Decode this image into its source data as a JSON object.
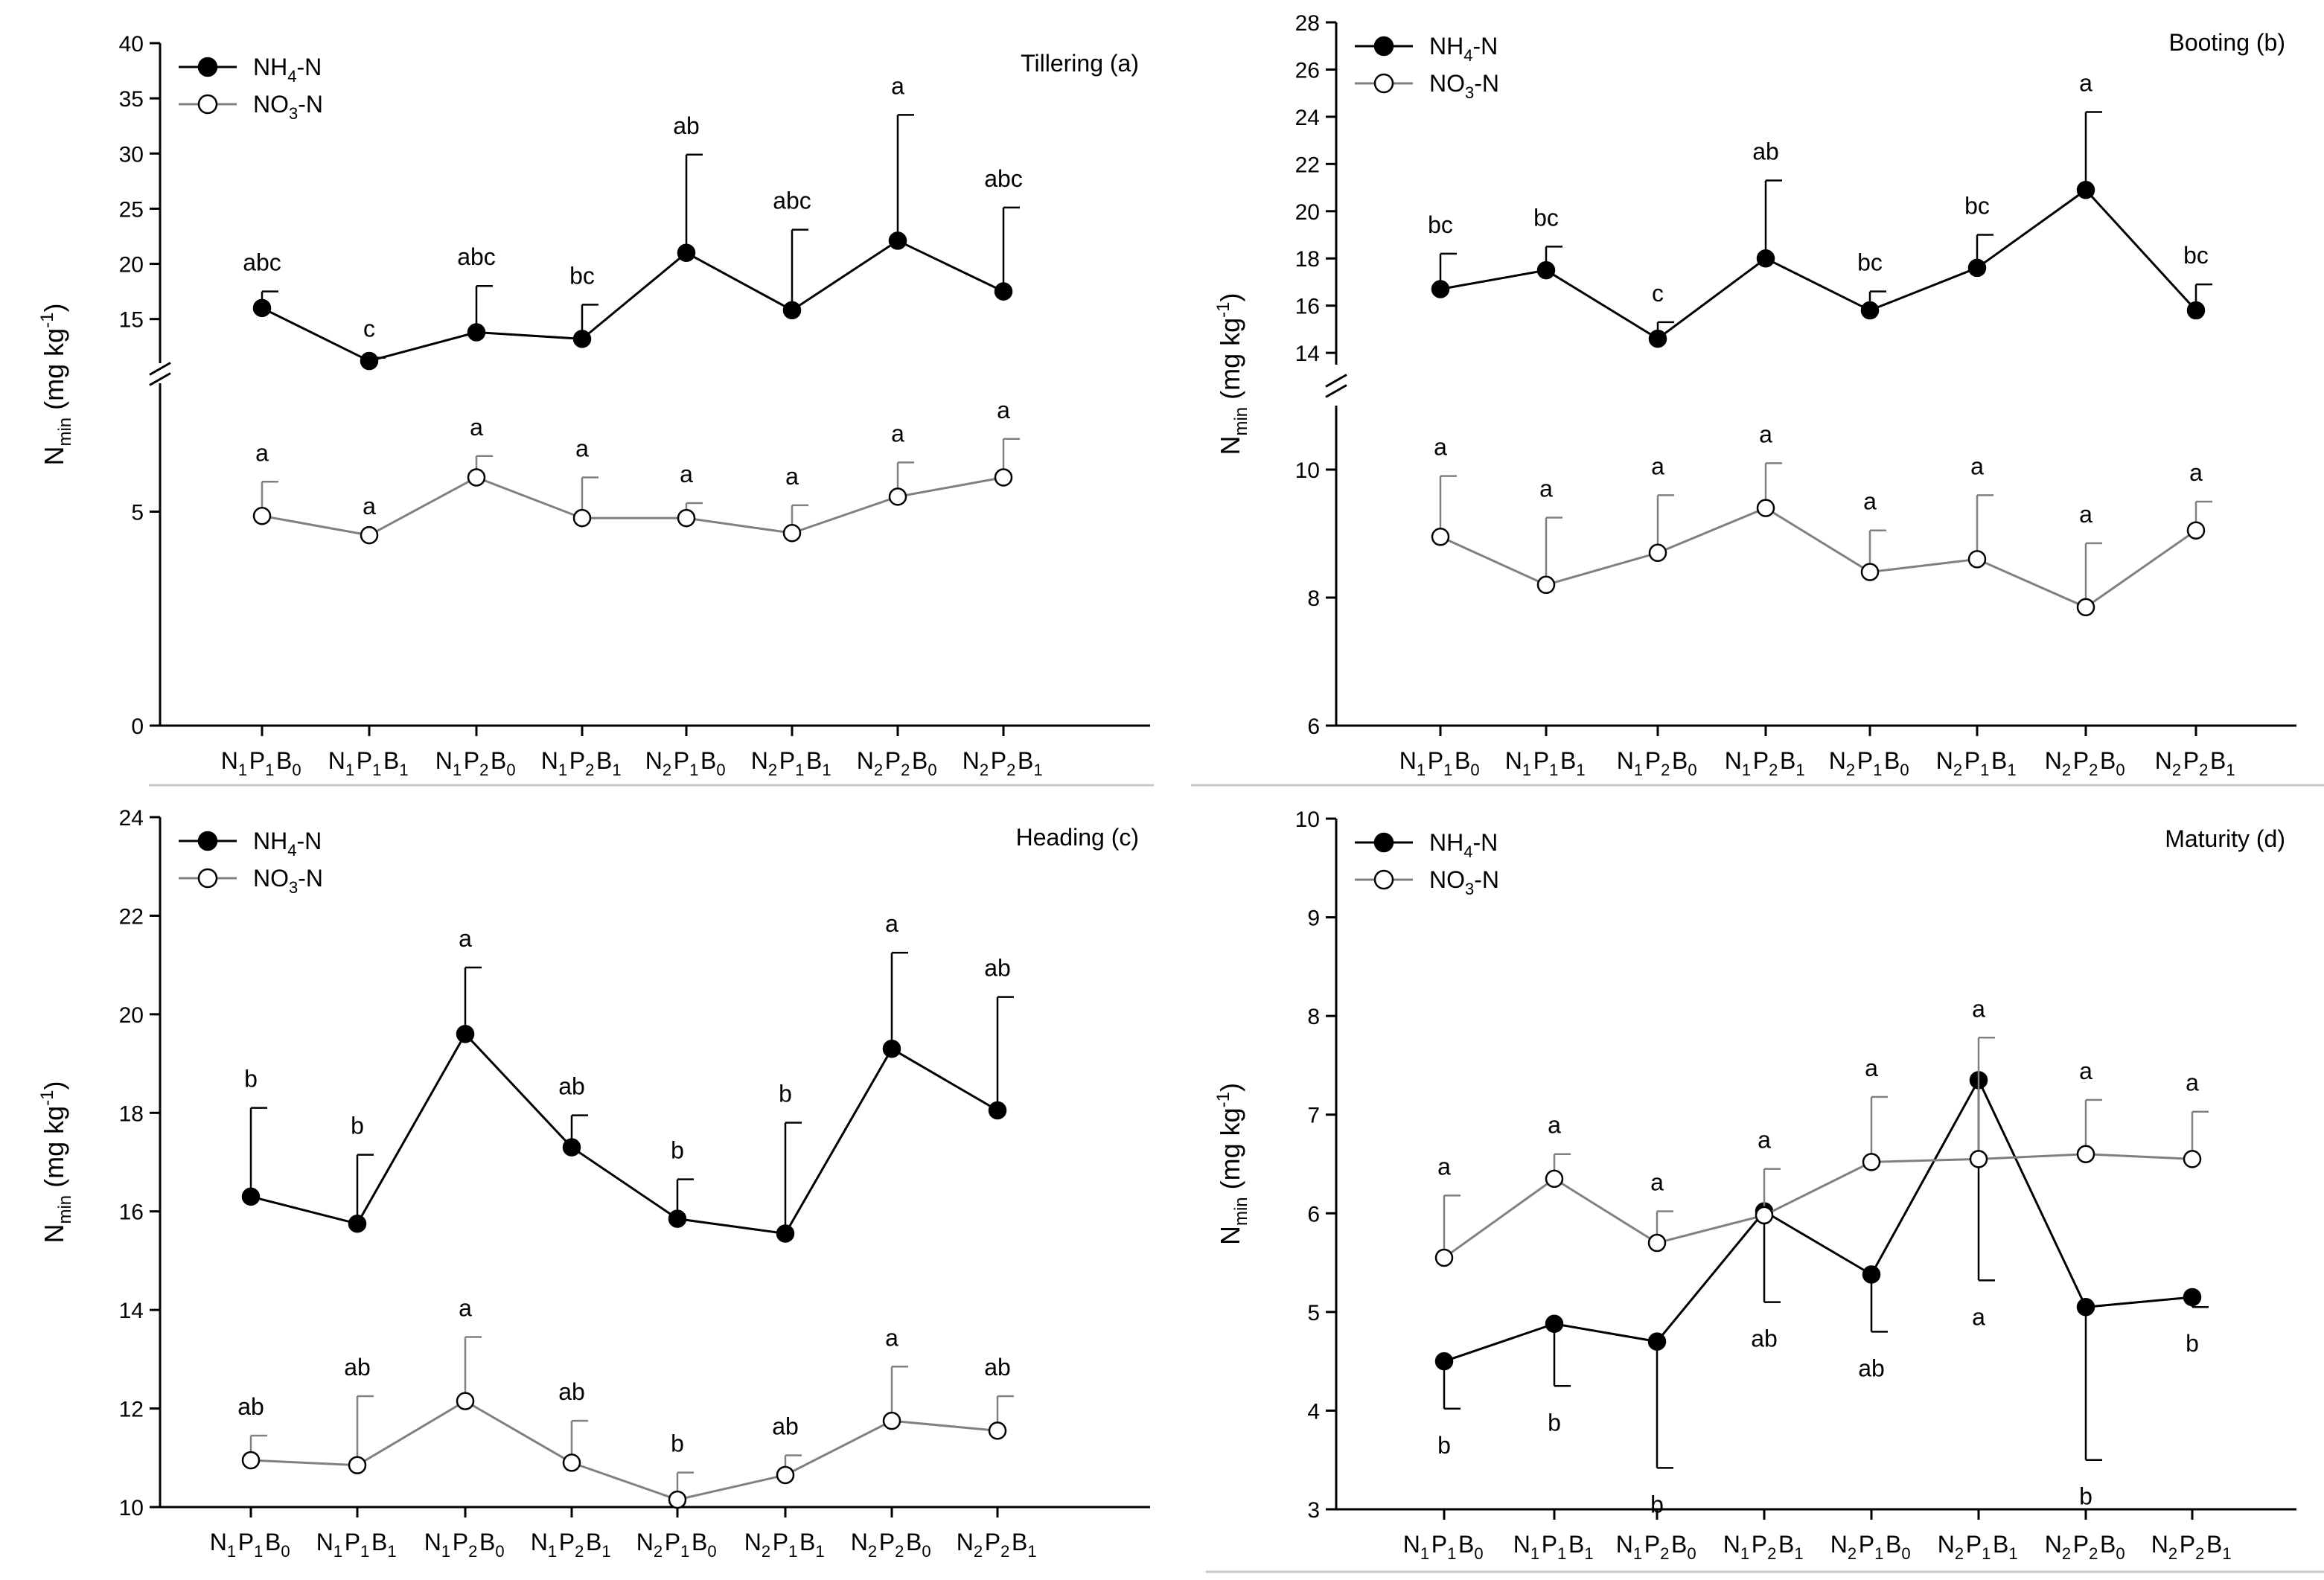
{
  "figure": {
    "categories": [
      [
        "N",
        "1",
        "P",
        "1",
        "B",
        "0"
      ],
      [
        "N",
        "1",
        "P",
        "1",
        "B",
        "1"
      ],
      [
        "N",
        "1",
        "P",
        "2",
        "B",
        "0"
      ],
      [
        "N",
        "1",
        "P",
        "2",
        "B",
        "1"
      ],
      [
        "N",
        "2",
        "P",
        "1",
        "B",
        "0"
      ],
      [
        "N",
        "2",
        "P",
        "1",
        "B",
        "1"
      ],
      [
        "N",
        "2",
        "P",
        "2",
        "B",
        "0"
      ],
      [
        "N",
        "2",
        "P",
        "2",
        "B",
        "1"
      ]
    ],
    "legend_nh4": {
      "main": "NH",
      "sub": "4",
      "suffix": "-N"
    },
    "legend_no3": {
      "main": "NO",
      "sub": "3",
      "suffix": "-N"
    },
    "ylabel": {
      "main": "N",
      "sub": "min",
      "unit_open": " (mg kg",
      "unit_exp": "-1",
      "unit_close": ")"
    },
    "colors": {
      "nh4_line": "#000000",
      "no3_line": "#808080",
      "marker_fill_nh4": "#000000",
      "marker_fill_no3": "#ffffff"
    }
  },
  "chart_data": [
    {
      "type": "line",
      "title": "Tillering (a)",
      "xlabel": "",
      "ylabel": "Nmin (mg kg-1)",
      "axis_break": true,
      "lower_ylim": [
        0,
        8
      ],
      "lower_ticks": [
        0,
        5
      ],
      "upper_ylim": [
        11,
        40
      ],
      "upper_ticks": [
        15,
        20,
        25,
        30,
        35,
        40
      ],
      "series": [
        {
          "name": "NH4-N",
          "values": [
            16.0,
            11.2,
            13.8,
            13.2,
            21.0,
            15.8,
            22.1,
            17.5
          ],
          "err_hi": [
            17.5,
            11.5,
            18.0,
            16.3,
            29.9,
            23.1,
            33.5,
            25.1
          ],
          "letters": [
            "abc",
            "c",
            "abc",
            "bc",
            "ab",
            "abc",
            "a",
            "abc"
          ],
          "letter_pos": [
            "above",
            "above",
            "above",
            "above",
            "above",
            "above",
            "above",
            "above"
          ]
        },
        {
          "name": "NO3-N",
          "values": [
            4.9,
            4.45,
            5.8,
            4.85,
            4.85,
            4.5,
            5.35,
            5.8
          ],
          "err_hi": [
            5.7,
            4.45,
            6.3,
            5.8,
            5.2,
            5.15,
            6.15,
            6.7
          ],
          "letters": [
            "a",
            "a",
            "a",
            "a",
            "a",
            "a",
            "a",
            "a"
          ],
          "letter_pos": [
            "above",
            "above",
            "above",
            "above",
            "above",
            "above",
            "above",
            "above"
          ]
        }
      ]
    },
    {
      "type": "line",
      "title": "Booting (b)",
      "xlabel": "",
      "ylabel": "Nmin (mg kg-1)",
      "axis_break": true,
      "lower_ylim": [
        6,
        11
      ],
      "lower_ticks": [
        6,
        8,
        10
      ],
      "upper_ylim": [
        13.5,
        28
      ],
      "upper_ticks": [
        14,
        16,
        18,
        20,
        22,
        24,
        26,
        28
      ],
      "series": [
        {
          "name": "NH4-N",
          "values": [
            16.7,
            17.5,
            14.6,
            18.0,
            15.8,
            17.6,
            20.9,
            15.8
          ],
          "err_hi": [
            18.2,
            18.5,
            15.3,
            21.3,
            16.6,
            19.0,
            24.2,
            16.9
          ],
          "letters": [
            "bc",
            "bc",
            "c",
            "ab",
            "bc",
            "bc",
            "a",
            "bc"
          ],
          "letter_pos": [
            "above",
            "above",
            "above",
            "above",
            "above",
            "above",
            "above",
            "above"
          ]
        },
        {
          "name": "NO3-N",
          "values": [
            8.95,
            8.2,
            8.7,
            9.4,
            8.4,
            8.6,
            7.85,
            9.05
          ],
          "err_hi": [
            9.9,
            9.25,
            9.6,
            10.1,
            9.05,
            9.6,
            8.85,
            9.5
          ],
          "letters": [
            "a",
            "a",
            "a",
            "a",
            "a",
            "a",
            "a",
            "a"
          ],
          "letter_pos": [
            "above",
            "above",
            "above",
            "above",
            "above",
            "above",
            "above",
            "above"
          ]
        }
      ]
    },
    {
      "type": "line",
      "title": "Heading (c)",
      "xlabel": "",
      "ylabel": "Nmin (mg kg-1)",
      "axis_break": false,
      "ylim": [
        10,
        24
      ],
      "ticks": [
        10,
        12,
        14,
        16,
        18,
        20,
        22,
        24
      ],
      "series": [
        {
          "name": "NH4-N",
          "values": [
            16.3,
            15.75,
            19.6,
            17.3,
            15.85,
            15.55,
            19.3,
            18.05
          ],
          "err_hi": [
            18.1,
            17.15,
            20.95,
            17.95,
            16.65,
            17.8,
            21.25,
            20.35
          ],
          "letters": [
            "b",
            "b",
            "a",
            "ab",
            "b",
            "b",
            "a",
            "ab"
          ],
          "letter_pos": [
            "above",
            "above",
            "above",
            "above",
            "above",
            "above",
            "above",
            "above"
          ]
        },
        {
          "name": "NO3-N",
          "values": [
            10.95,
            10.85,
            12.15,
            10.9,
            10.15,
            10.65,
            11.75,
            11.55
          ],
          "err_hi": [
            11.45,
            12.25,
            13.45,
            11.75,
            10.7,
            11.05,
            12.85,
            12.25
          ],
          "letters": [
            "ab",
            "ab",
            "a",
            "ab",
            "b",
            "ab",
            "a",
            "ab"
          ],
          "letter_pos": [
            "above",
            "above",
            "above",
            "above",
            "above",
            "above",
            "above",
            "above"
          ]
        }
      ]
    },
    {
      "type": "line",
      "title": "Maturity (d)",
      "xlabel": "",
      "ylabel": "Nmin (mg kg-1)",
      "axis_break": false,
      "ylim": [
        3,
        10
      ],
      "ticks": [
        3,
        4,
        5,
        6,
        7,
        8,
        9,
        10
      ],
      "series": [
        {
          "name": "NH4-N",
          "values": [
            4.5,
            4.88,
            4.7,
            6.02,
            5.38,
            7.35,
            5.05,
            5.15
          ],
          "err_lo": [
            4.02,
            4.25,
            3.42,
            5.1,
            4.8,
            5.32,
            3.5,
            5.05
          ],
          "letters": [
            "b",
            "b",
            "b",
            "ab",
            "ab",
            "a",
            "b",
            "b"
          ],
          "letter_pos": [
            "below",
            "below",
            "below",
            "below",
            "below",
            "below",
            "below",
            "below"
          ]
        },
        {
          "name": "NO3-N",
          "values": [
            5.55,
            6.35,
            5.7,
            5.98,
            6.52,
            6.55,
            6.6,
            6.55
          ],
          "err_hi": [
            6.18,
            6.6,
            6.02,
            6.45,
            7.18,
            7.78,
            7.15,
            7.03
          ],
          "letters": [
            "a",
            "a",
            "a",
            "a",
            "a",
            "a",
            "a",
            "a"
          ],
          "letter_pos": [
            "above",
            "above",
            "above",
            "above",
            "above",
            "above",
            "above",
            "above"
          ]
        }
      ]
    }
  ]
}
